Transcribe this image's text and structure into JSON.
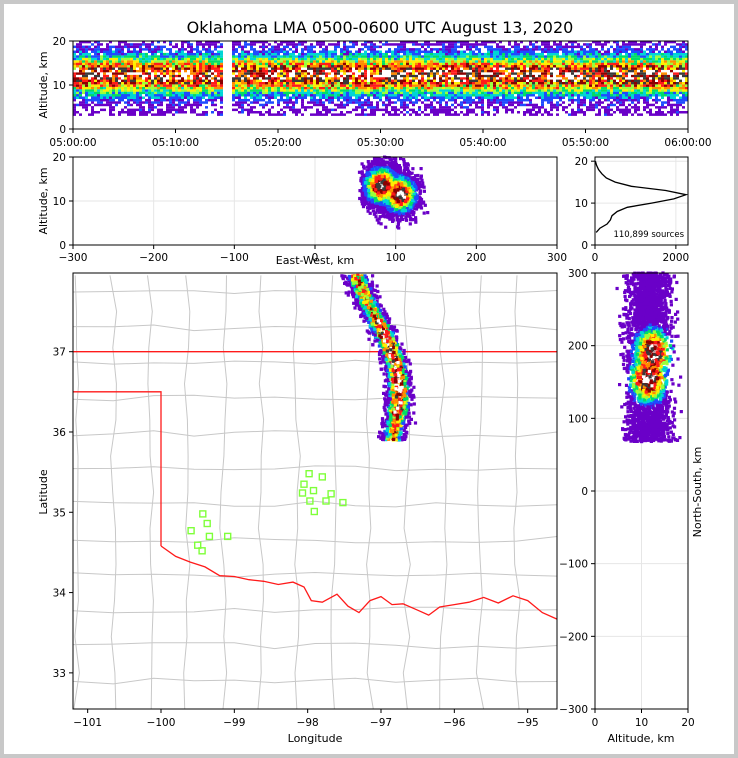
{
  "chart_data": [
    {
      "panel": "time-altitude",
      "type": "heatmap",
      "title": "Oklahoma LMA 0500-0600 UTC August 13, 2020",
      "xlabel": "",
      "ylabel": "Altitude, km",
      "x_ticks": [
        "05:00:00",
        "05:10:00",
        "05:20:00",
        "05:30:00",
        "05:40:00",
        "05:50:00",
        "06:00:00"
      ],
      "y_ticks": [
        "0",
        "10",
        "20"
      ],
      "ylim": [
        0,
        20
      ],
      "data_gap_utc": "05:15:00",
      "peak_density_altitude_km": 12,
      "source_altitude_range_km": [
        3,
        20
      ]
    },
    {
      "panel": "east-west-altitude",
      "type": "heatmap",
      "xlabel": "East-West, km",
      "ylabel": "Altitude, km",
      "x_ticks": [
        "−300",
        "−200",
        "−100",
        "0",
        "100",
        "200",
        "300"
      ],
      "y_ticks": [
        "0",
        "10",
        "20"
      ],
      "xlim": [
        -300,
        300
      ],
      "ylim": [
        0,
        20
      ],
      "source_x_range_km": [
        55,
        140
      ],
      "density_cores": [
        {
          "x_km": 82,
          "alt_km": 13.5
        },
        {
          "x_km": 105,
          "alt_km": 11.5
        }
      ]
    },
    {
      "panel": "altitude-histogram",
      "type": "line",
      "xlabel": "",
      "x_ticks": [
        "0",
        "2000"
      ],
      "y_ticks": [
        "0",
        "10",
        "20"
      ],
      "xlim": [
        0,
        2300
      ],
      "ylim": [
        0,
        21
      ],
      "annotation": "110,899 sources",
      "altitude_km": [
        3,
        4,
        5,
        6,
        7,
        8,
        9,
        10,
        11,
        12,
        13,
        14,
        15,
        16,
        17,
        18,
        19,
        20
      ],
      "counts": [
        30,
        120,
        300,
        380,
        420,
        550,
        800,
        1400,
        1950,
        2250,
        1750,
        900,
        500,
        280,
        170,
        90,
        40,
        10
      ]
    },
    {
      "panel": "plan-view",
      "type": "scatter",
      "xlabel": "Longitude",
      "ylabel": "Latitude",
      "x_ticks": [
        "−101",
        "−100",
        "−99",
        "−98",
        "−97",
        "−96",
        "−95"
      ],
      "y_ticks": [
        "33",
        "34",
        "35",
        "36",
        "37"
      ],
      "xlim": [
        -101.2,
        -94.6
      ],
      "ylim": [
        32.55,
        37.98
      ],
      "state_border_latitude": 37.0,
      "panhandle_line_latitude": 36.5,
      "panhandle_longitude": -100.0,
      "station_color": "#7fff3a",
      "border_color": "#ff1a1a",
      "county_color": "#c8c8c8",
      "stations": [
        {
          "lon": -97.98,
          "lat": 35.48
        },
        {
          "lon": -97.8,
          "lat": 35.44
        },
        {
          "lon": -98.05,
          "lat": 35.35
        },
        {
          "lon": -97.92,
          "lat": 35.27
        },
        {
          "lon": -98.07,
          "lat": 35.24
        },
        {
          "lon": -97.68,
          "lat": 35.23
        },
        {
          "lon": -97.97,
          "lat": 35.14
        },
        {
          "lon": -97.75,
          "lat": 35.14
        },
        {
          "lon": -97.52,
          "lat": 35.12
        },
        {
          "lon": -97.91,
          "lat": 35.01
        },
        {
          "lon": -99.43,
          "lat": 34.98
        },
        {
          "lon": -99.37,
          "lat": 34.86
        },
        {
          "lon": -99.59,
          "lat": 34.77
        },
        {
          "lon": -99.34,
          "lat": 34.7
        },
        {
          "lon": -99.09,
          "lat": 34.7
        },
        {
          "lon": -99.5,
          "lat": 34.59
        },
        {
          "lon": -99.44,
          "lat": 34.52
        }
      ],
      "source_band": {
        "lon_range": [
          -97.25,
          -96.55
        ],
        "lat_range": [
          35.9,
          37.95
        ]
      }
    },
    {
      "panel": "altitude-north-south",
      "type": "heatmap",
      "xlabel": "Altitude, km",
      "ylabel": "North-South, km",
      "x_ticks": [
        "0",
        "10",
        "20"
      ],
      "y_ticks": [
        "−300",
        "−200",
        "−100",
        "0",
        "100",
        "200",
        "300"
      ],
      "xlim": [
        0,
        20
      ],
      "ylim": [
        -300,
        300
      ],
      "source_ns_range_km": [
        68,
        300
      ],
      "density_cores": [
        {
          "alt_km": 12.5,
          "ns_km": 190
        },
        {
          "alt_km": 11.5,
          "ns_km": 155
        }
      ]
    }
  ]
}
